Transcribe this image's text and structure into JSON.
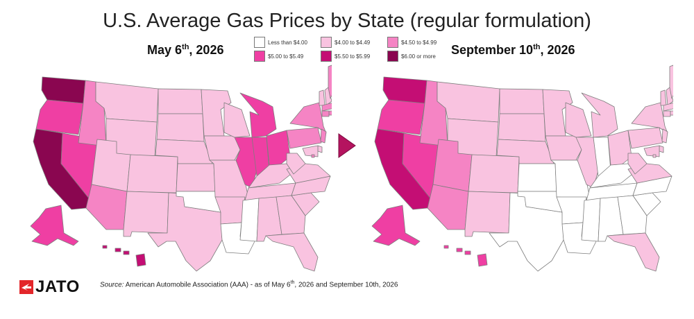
{
  "title": "U.S. Average Gas Prices by State (regular formulation)",
  "left_date": {
    "main": "May 6",
    "sup": "th",
    "rest": ", 2026"
  },
  "right_date": {
    "main": "September 10",
    "sup": "th",
    "rest": ", 2026"
  },
  "legend": [
    {
      "label": "Less than $4.00",
      "color": "#ffffff"
    },
    {
      "label": "$4.00 to $4.49",
      "color": "#f9c3e0"
    },
    {
      "label": "$4.50 to $4.99",
      "color": "#f584c4"
    },
    {
      "label": "$5.00 to $5.49",
      "color": "#ef3fa3"
    },
    {
      "label": "$5.50 to $5.99",
      "color": "#c40e74"
    },
    {
      "label": "$6.00 or more",
      "color": "#8a0650"
    }
  ],
  "arrow_color": "#b5135f",
  "logo": {
    "text": "JATO",
    "mark_color": "#e3262a"
  },
  "source": {
    "lead": "Source:",
    "text_a": " American Automobile Association (AAA) - as of May 6",
    "sup": "th",
    "text_b": ", 2026 and September 10th, 2026"
  },
  "maps": {
    "may": {
      "WA": "$6.00 or more",
      "OR": "$5.00 to $5.49",
      "CA": "$6.00 or more",
      "NV": "$5.00 to $5.49",
      "ID": "$4.50 to $4.99",
      "MT": "$4.00 to $4.49",
      "WY": "$4.00 to $4.49",
      "UT": "$4.00 to $4.49",
      "AZ": "$4.50 to $4.99",
      "CO": "$4.00 to $4.49",
      "NM": "$4.00 to $4.49",
      "TX": "$4.00 to $4.49",
      "ND": "$4.00 to $4.49",
      "SD": "$4.00 to $4.49",
      "NE": "$4.00 to $4.49",
      "KS": "$4.00 to $4.49",
      "OK": "Less than $4.00",
      "MN": "$4.00 to $4.49",
      "IA": "$4.00 to $4.49",
      "MO": "$4.00 to $4.49",
      "AR": "$4.00 to $4.49",
      "LA": "Less than $4.00",
      "WI": "$4.00 to $4.49",
      "IL": "$5.00 to $5.49",
      "MI": "$5.00 to $5.49",
      "IN": "$5.00 to $5.49",
      "OH": "$5.00 to $5.49",
      "KY": "$4.00 to $4.49",
      "TN": "$4.00 to $4.49",
      "MS": "Less than $4.00",
      "AL": "$4.00 to $4.49",
      "GA": "$4.00 to $4.49",
      "FL": "$4.00 to $4.49",
      "SC": "$4.00 to $4.49",
      "NC": "$4.00 to $4.49",
      "VA": "$4.00 to $4.49",
      "WV": "$4.00 to $4.49",
      "PA": "$4.50 to $4.99",
      "NY": "$4.50 to $4.99",
      "VT": "$4.00 to $4.49",
      "NH": "$4.00 to $4.49",
      "ME": "$4.50 to $4.99",
      "MA": "$4.50 to $4.99",
      "RI": "$4.50 to $4.99",
      "CT": "$4.50 to $4.99",
      "NJ": "$4.50 to $4.99",
      "DE": "$4.00 to $4.49",
      "MD": "$4.00 to $4.49",
      "DC": "$4.50 to $4.99",
      "AK": "$5.00 to $5.49",
      "HI": "$5.50 to $5.99"
    },
    "september": {
      "WA": "$5.50 to $5.99",
      "OR": "$5.00 to $5.49",
      "CA": "$5.50 to $5.99",
      "NV": "$5.00 to $5.49",
      "ID": "$4.50 to $4.99",
      "MT": "$4.00 to $4.49",
      "WY": "$4.00 to $4.49",
      "UT": "$4.50 to $4.99",
      "AZ": "$4.50 to $4.99",
      "CO": "$4.00 to $4.49",
      "NM": "$4.00 to $4.49",
      "TX": "Less than $4.00",
      "ND": "$4.00 to $4.49",
      "SD": "$4.00 to $4.49",
      "NE": "$4.00 to $4.49",
      "KS": "Less than $4.00",
      "OK": "Less than $4.00",
      "MN": "$4.00 to $4.49",
      "IA": "$4.00 to $4.49",
      "MO": "Less than $4.00",
      "AR": "Less than $4.00",
      "LA": "Less than $4.00",
      "WI": "$4.00 to $4.49",
      "IL": "$4.00 to $4.49",
      "MI": "$4.00 to $4.49",
      "IN": "Less than $4.00",
      "OH": "$4.00 to $4.49",
      "KY": "Less than $4.00",
      "TN": "Less than $4.00",
      "MS": "Less than $4.00",
      "AL": "Less than $4.00",
      "GA": "Less than $4.00",
      "FL": "$4.00 to $4.49",
      "SC": "Less than $4.00",
      "NC": "Less than $4.00",
      "VA": "$4.00 to $4.49",
      "WV": "$4.00 to $4.49",
      "PA": "$4.00 to $4.49",
      "NY": "$4.00 to $4.49",
      "VT": "$4.00 to $4.49",
      "NH": "$4.00 to $4.49",
      "ME": "$4.00 to $4.49",
      "MA": "$4.00 to $4.49",
      "RI": "$4.00 to $4.49",
      "CT": "$4.00 to $4.49",
      "NJ": "$4.00 to $4.49",
      "DE": "$4.00 to $4.49",
      "MD": "$4.00 to $4.49",
      "DC": "$4.00 to $4.49",
      "AK": "$5.00 to $5.49",
      "HI": "$5.00 to $5.49"
    }
  }
}
